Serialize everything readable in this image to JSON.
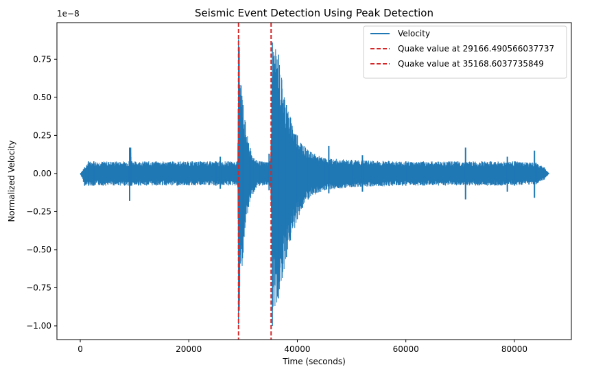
{
  "chart_data": {
    "type": "line",
    "title": "Seismic Event Detection Using Peak Detection",
    "xlabel": "Time (seconds)",
    "ylabel": "Normalized Velocity",
    "y_offset_label": "1e−8",
    "xlim": [
      -4300,
      90500
    ],
    "ylim": [
      -1.09,
      0.99
    ],
    "x_ticks": [
      0,
      20000,
      40000,
      60000,
      80000
    ],
    "x_tick_labels": [
      "0",
      "20000",
      "40000",
      "60000",
      "80000"
    ],
    "y_ticks": [
      -1.0,
      -0.75,
      -0.5,
      -0.25,
      0.0,
      0.25,
      0.5,
      0.75
    ],
    "y_tick_labels": [
      "−1.00",
      "−0.75",
      "−0.50",
      "−0.25",
      "0.00",
      "0.25",
      "0.50",
      "0.75"
    ],
    "grid": false,
    "legend_position": "top-right",
    "series": [
      {
        "name": "Velocity",
        "color": "#1f77b4",
        "style": "solid",
        "envelope": {
          "x": [
            0,
            800,
            1500,
            2500,
            9000,
            9300,
            9500,
            25000,
            29000,
            29166,
            29300,
            30000,
            31000,
            32000,
            33000,
            35000,
            35168,
            35400,
            36500,
            38000,
            40000,
            42000,
            45000,
            50000,
            60000,
            80000,
            84000,
            85500,
            86400
          ],
          "upper": [
            0.0,
            0.04,
            0.08,
            0.08,
            0.08,
            0.17,
            0.08,
            0.08,
            0.08,
            0.88,
            0.83,
            0.45,
            0.2,
            0.1,
            0.08,
            0.08,
            0.2,
            0.86,
            0.78,
            0.45,
            0.25,
            0.15,
            0.1,
            0.09,
            0.08,
            0.08,
            0.07,
            0.04,
            0.0
          ],
          "lower": [
            0.0,
            -0.08,
            -0.08,
            -0.08,
            -0.08,
            -0.08,
            -0.08,
            -0.08,
            -0.08,
            -0.99,
            -0.9,
            -0.52,
            -0.22,
            -0.12,
            -0.08,
            -0.08,
            -0.18,
            -1.0,
            -0.82,
            -0.55,
            -0.3,
            -0.17,
            -0.11,
            -0.09,
            -0.08,
            -0.08,
            -0.07,
            -0.04,
            0.0
          ]
        },
        "spikes": [
          {
            "x": 9100,
            "y": [
              -0.18,
              0.17
            ]
          },
          {
            "x": 25800,
            "y": [
              -0.1,
              0.11
            ]
          },
          {
            "x": 31500,
            "y": [
              -0.11,
              0.11
            ]
          },
          {
            "x": 34800,
            "y": [
              -0.11,
              0.13
            ]
          },
          {
            "x": 45800,
            "y": [
              -0.13,
              0.18
            ]
          },
          {
            "x": 52000,
            "y": [
              -0.12,
              0.12
            ]
          },
          {
            "x": 71000,
            "y": [
              -0.17,
              0.17
            ]
          },
          {
            "x": 78700,
            "y": [
              -0.12,
              0.11
            ]
          },
          {
            "x": 83700,
            "y": [
              -0.16,
              0.15
            ]
          }
        ]
      },
      {
        "name": "Quake value at 29166.490566037737",
        "color": "#d62728",
        "style": "dashed",
        "x": 29166.490566037737
      },
      {
        "name": "Quake value at 35168.6037735849",
        "color": "#d62728",
        "style": "dashed",
        "x": 35168.6037735849
      }
    ]
  }
}
